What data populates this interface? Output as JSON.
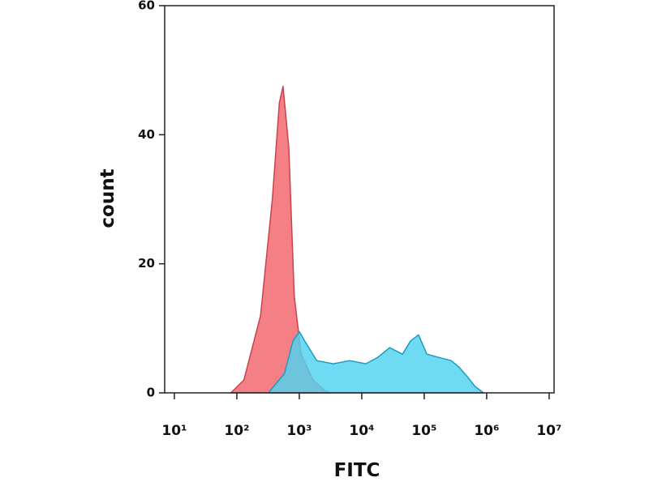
{
  "chart_data": {
    "type": "area",
    "x_label": "FITC",
    "y_label": "count",
    "xscale": "log",
    "xlim": [
      7,
      12000000
    ],
    "ylim": [
      0,
      60
    ],
    "yticks": [
      0,
      20,
      40,
      60
    ],
    "xticks": [
      {
        "value": 10,
        "label": "10¹"
      },
      {
        "value": 100,
        "label": "10²"
      },
      {
        "value": 1000,
        "label": "10³"
      },
      {
        "value": 10000,
        "label": "10⁴"
      },
      {
        "value": 100000,
        "label": "10⁵"
      },
      {
        "value": 1000000,
        "label": "10⁶"
      },
      {
        "value": 10000000,
        "label": "10⁷"
      }
    ],
    "series": [
      {
        "color": "#f47f84",
        "stroke": "#c8444c",
        "x": [
          80,
          130,
          240,
          370,
          480,
          550,
          680,
          830,
          1070,
          1660,
          2600,
          3200
        ],
        "values": [
          0,
          2,
          12,
          30,
          45,
          47.5,
          38,
          15,
          6,
          2,
          0.3,
          0
        ]
      },
      {
        "color": "#4fd3ef",
        "stroke": "#1e9cc0",
        "x": [
          320,
          580,
          790,
          1000,
          1230,
          1900,
          3500,
          6400,
          11600,
          18000,
          28000,
          45000,
          60000,
          81000,
          110000,
          170000,
          270000,
          360000,
          490000,
          650000,
          890000
        ],
        "values": [
          0,
          3,
          8,
          9.5,
          8,
          5,
          4.5,
          5,
          4.5,
          5.5,
          7,
          6,
          8,
          9,
          6,
          5.5,
          5,
          4,
          2.5,
          1,
          0
        ]
      }
    ]
  }
}
